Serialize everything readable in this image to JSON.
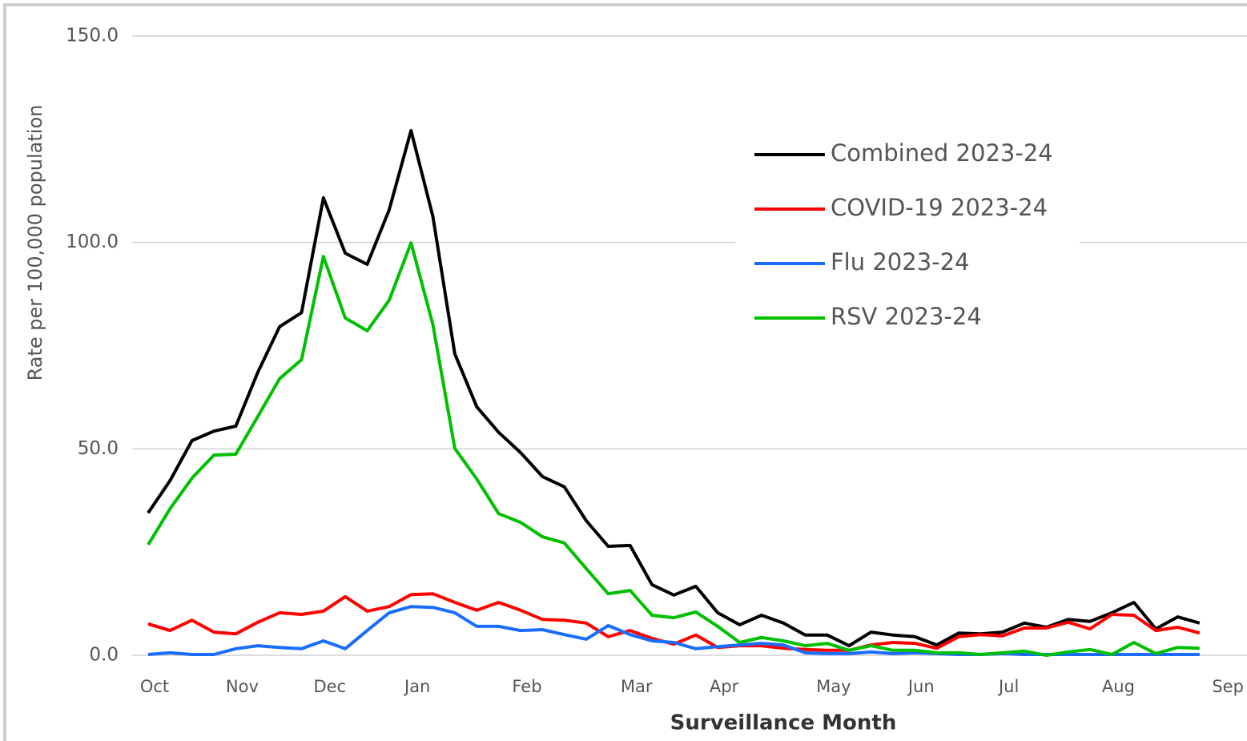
{
  "chart_data": {
    "type": "line",
    "x_label": "Surveillance Month",
    "y_label": "Rate per 100,000 population",
    "categories": [
      "Oct",
      null,
      null,
      null,
      "Nov",
      null,
      null,
      null,
      "Dec",
      null,
      null,
      null,
      "Jan",
      null,
      null,
      null,
      null,
      "Feb",
      null,
      null,
      null,
      null,
      "Mar",
      null,
      null,
      null,
      "Apr",
      null,
      null,
      null,
      null,
      "May",
      null,
      null,
      null,
      "Jun",
      null,
      null,
      null,
      "Jul",
      null,
      null,
      null,
      null,
      "Aug",
      null,
      null,
      null,
      null,
      "Sep"
    ],
    "ylim": [
      0,
      150
    ],
    "yticks": [
      {
        "value": 0,
        "label": "0.0"
      },
      {
        "value": 50,
        "label": "50.0"
      },
      {
        "value": 100,
        "label": "100.0"
      },
      {
        "value": 150,
        "label": "150.0"
      }
    ],
    "grid": true,
    "legend": "top-right",
    "series": [
      {
        "name": "Combined 2023-24",
        "color": "#000000",
        "values": [
          34.5,
          42.3,
          52,
          54.3,
          55.5,
          68.5,
          79.6,
          83,
          110.8,
          97.4,
          94.7,
          107.9,
          127.1,
          106.3,
          73,
          60.2,
          54,
          49.1,
          43.3,
          40.8,
          32.6,
          26.4,
          26.6,
          17.1,
          14.6,
          16.7,
          10.3,
          7.4,
          9.7,
          7.8,
          4.9,
          4.9,
          2.3,
          5.6,
          4.9,
          4.5,
          2.5,
          5.4,
          5.2,
          5.6,
          7.8,
          6.8,
          8.7,
          8.2,
          10.3,
          12.8,
          6.4,
          9.3,
          7.8,
          null
        ]
      },
      {
        "name": "COVID-19 2023-24",
        "color": "#ff0000",
        "values": [
          7.6,
          6,
          8.5,
          5.6,
          5.2,
          8,
          10.3,
          9.9,
          10.7,
          14.2,
          10.7,
          11.8,
          14.7,
          14.9,
          12.8,
          10.9,
          12.8,
          10.9,
          8.7,
          8.5,
          7.8,
          4.5,
          6,
          4.1,
          2.7,
          4.9,
          1.9,
          2.3,
          2.3,
          1.7,
          1.4,
          1.2,
          1.2,
          2.5,
          3.1,
          2.9,
          1.7,
          4.5,
          5,
          4.7,
          6.6,
          6.6,
          8,
          6.4,
          9.9,
          9.7,
          6,
          6.8,
          5.4,
          null
        ]
      },
      {
        "name": "Flu 2023-24",
        "color": "#1a6dff",
        "values": [
          0.2,
          0.6,
          0.2,
          0.2,
          1.6,
          2.3,
          1.9,
          1.6,
          3.5,
          1.6,
          6,
          10.3,
          11.8,
          11.6,
          10.3,
          7,
          7,
          6,
          6.2,
          5,
          3.9,
          7.2,
          5,
          3.5,
          3.1,
          1.6,
          2.1,
          2.5,
          2.9,
          2.5,
          0.6,
          0.4,
          0.4,
          0.8,
          0.4,
          0.6,
          0.4,
          0.2,
          0.2,
          0.4,
          0.2,
          0.2,
          0.2,
          0.2,
          0.2,
          0.2,
          0.2,
          0.2,
          0.2,
          null
        ]
      },
      {
        "name": "RSV 2023-24",
        "color": "#00c000",
        "values": [
          26.8,
          35.5,
          42.9,
          48.5,
          48.7,
          57.8,
          67,
          71.6,
          96.6,
          81.7,
          78.6,
          86,
          99.9,
          80.1,
          50.1,
          42.7,
          34.3,
          32.2,
          28.7,
          27.2,
          21,
          14.9,
          15.7,
          9.7,
          9.1,
          10.5,
          7,
          3.1,
          4.3,
          3.5,
          2.3,
          2.9,
          1.2,
          2.3,
          1.2,
          1.2,
          0.6,
          0.6,
          0.2,
          0.6,
          1,
          0,
          0.8,
          1.4,
          0.2,
          3.1,
          0.4,
          1.9,
          1.7,
          null
        ]
      }
    ]
  }
}
